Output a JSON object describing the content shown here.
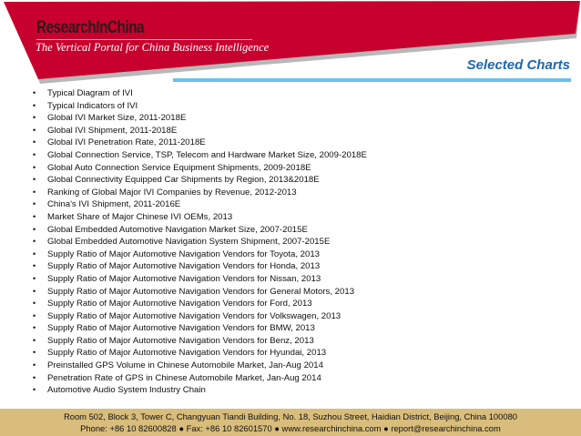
{
  "header": {
    "logo_text": "ResearchInChina",
    "tagline": "The Vertical Portal for China Business Intelligence",
    "section_title": "Selected  Charts",
    "brand_color": "#c8002e",
    "accent_color": "#1f66b0"
  },
  "charts_list": [
    "Typical Diagram of IVI",
    "Typical Indicators of IVI",
    "Global IVI Market Size, 2011-2018E",
    "Global IVI Shipment, 2011-2018E",
    "Global IVI Penetration Rate, 2011-2018E",
    "Global Connection Service, TSP, Telecom and Hardware Market Size, 2009-2018E",
    "Global Auto Connection Service Equipment Shipments, 2009-2018E",
    "Global Connectivity Equipped Car Shipments by Region, 2013&2018E",
    "Ranking of Global Major IVI Companies by Revenue, 2012-2013",
    "China's IVI Shipment, 2011-2016E",
    "Market Share of Major Chinese IVI OEMs, 2013",
    "Global Embedded Automotive Navigation Market Size, 2007-2015E",
    "Global Embedded Automotive Navigation System Shipment, 2007-2015E",
    "Supply Ratio of Major Automotive Navigation Vendors for Toyota, 2013",
    "Supply Ratio of Major Automotive Navigation Vendors for Honda, 2013",
    "Supply Ratio of Major Automotive Navigation Vendors for Nissan, 2013",
    "Supply Ratio of Major Automotive Navigation Vendors for General Motors, 2013",
    "Supply Ratio of Major Automotive Navigation Vendors for Ford, 2013",
    "Supply Ratio of Major Automotive Navigation Vendors for Volkswagen, 2013",
    "Supply Ratio of Major Automotive Navigation Vendors for BMW, 2013",
    "Supply Ratio of Major Automotive Navigation Vendors for Benz, 2013",
    "Supply Ratio of Major Automotive Navigation Vendors for Hyundai, 2013",
    "Preinstalled GPS Volume in Chinese Automobile Market, Jan-Aug 2014",
    "Penetration Rate of GPS in Chinese Automobile Market, Jan-Aug 2014",
    "Automotive Audio System Industry Chain"
  ],
  "footer": {
    "address": "Room 502, Block 3, Tower C, Changyuan Tiandi Building, No. 18, Suzhou Street, Haidian District, Beijing, China 100080",
    "contact": "Phone: +86 10 82600828 ● Fax: +86 10 82601570 ● www.researchinchina.com ● report@researchinchina.com"
  }
}
